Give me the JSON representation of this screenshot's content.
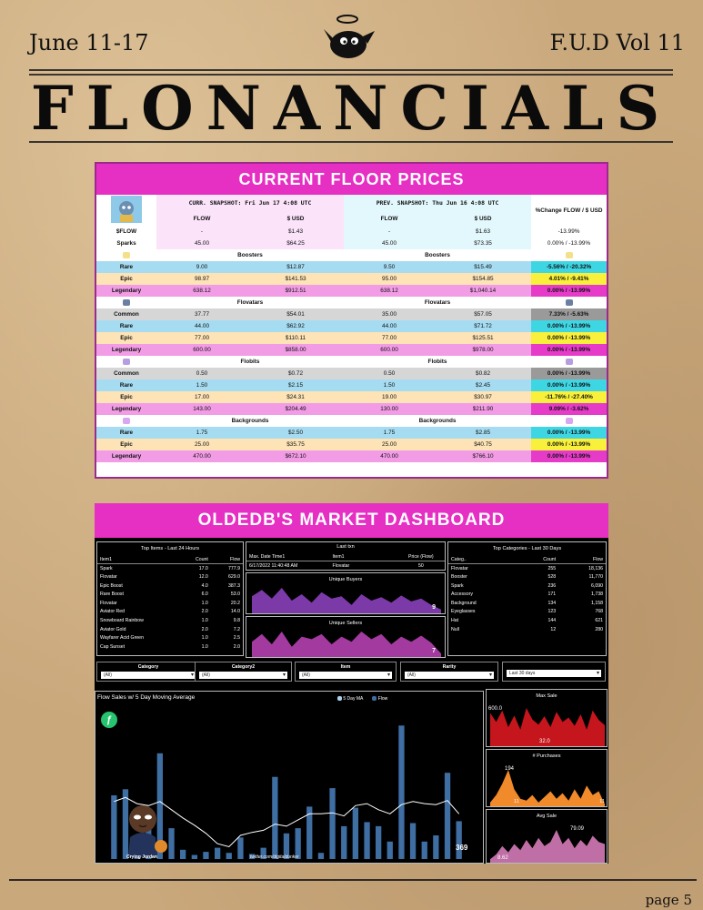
{
  "header": {
    "date_range": "June 11-17",
    "volume": "F.U.D Vol 11",
    "masthead": "FLONANCIALS",
    "page_label": "page 5"
  },
  "floor_prices": {
    "title": "CURRENT FLOOR PRICES",
    "curr_snapshot": "CURR. SNAPSHOT: Fri Jun 17 4:08 UTC",
    "prev_snapshot": "PREV. SNAPSHOT: Thu Jun 16 4:08 UTC",
    "change_header": "%Change FLOW / $ USD",
    "col_flow": "FLOW",
    "col_usd": "$ USD",
    "top_rows": [
      {
        "label": "$FLOW",
        "curr_flow": "-",
        "curr_usd": "$1.43",
        "prev_flow": "-",
        "prev_usd": "$1.63",
        "change": "-13.99%"
      },
      {
        "label": "Sparks",
        "curr_flow": "45.00",
        "curr_usd": "$64.25",
        "prev_flow": "45.00",
        "prev_usd": "$73.35",
        "change": "0.00% / -13.99%"
      }
    ],
    "sections": [
      {
        "name": "Boosters",
        "rows": [
          {
            "label": "Rare",
            "tier": "rare",
            "curr_flow": "9.00",
            "curr_usd": "$12.87",
            "prev_flow": "9.50",
            "prev_usd": "$15.49",
            "change": "-5.56% / -20.32%"
          },
          {
            "label": "Epic",
            "tier": "epic",
            "curr_flow": "98.97",
            "curr_usd": "$141.53",
            "prev_flow": "95.00",
            "prev_usd": "$154.85",
            "change": "4.01% / -9.41%"
          },
          {
            "label": "Legendary",
            "tier": "leg",
            "curr_flow": "638.12",
            "curr_usd": "$912.51",
            "prev_flow": "638.12",
            "prev_usd": "$1,040.14",
            "change": "0.00% / -13.99%"
          }
        ]
      },
      {
        "name": "Flovatars",
        "rows": [
          {
            "label": "Common",
            "tier": "com",
            "curr_flow": "37.77",
            "curr_usd": "$54.01",
            "prev_flow": "35.00",
            "prev_usd": "$57.05",
            "change": "7.33% / -5.63%"
          },
          {
            "label": "Rare",
            "tier": "rare",
            "curr_flow": "44.00",
            "curr_usd": "$62.92",
            "prev_flow": "44.00",
            "prev_usd": "$71.72",
            "change": "0.00% / -13.99%"
          },
          {
            "label": "Epic",
            "tier": "epic",
            "curr_flow": "77.00",
            "curr_usd": "$110.11",
            "prev_flow": "77.00",
            "prev_usd": "$125.51",
            "change": "0.00% / -13.99%"
          },
          {
            "label": "Legendary",
            "tier": "leg",
            "curr_flow": "600.00",
            "curr_usd": "$858.00",
            "prev_flow": "600.00",
            "prev_usd": "$978.00",
            "change": "0.00% / -13.99%"
          }
        ]
      },
      {
        "name": "Flobits",
        "rows": [
          {
            "label": "Common",
            "tier": "com",
            "curr_flow": "0.50",
            "curr_usd": "$0.72",
            "prev_flow": "0.50",
            "prev_usd": "$0.82",
            "change": "0.00% / -13.99%"
          },
          {
            "label": "Rare",
            "tier": "rare",
            "curr_flow": "1.50",
            "curr_usd": "$2.15",
            "prev_flow": "1.50",
            "prev_usd": "$2.45",
            "change": "0.00% / -13.99%"
          },
          {
            "label": "Epic",
            "tier": "epic",
            "curr_flow": "17.00",
            "curr_usd": "$24.31",
            "prev_flow": "19.00",
            "prev_usd": "$30.97",
            "change": "-11.76% / -27.40%"
          },
          {
            "label": "Legendary",
            "tier": "leg",
            "curr_flow": "143.00",
            "curr_usd": "$204.49",
            "prev_flow": "130.00",
            "prev_usd": "$211.90",
            "change": "9.09% / -3.62%"
          }
        ]
      },
      {
        "name": "Backgrounds",
        "rows": [
          {
            "label": "Rare",
            "tier": "rare",
            "curr_flow": "1.75",
            "curr_usd": "$2.50",
            "prev_flow": "1.75",
            "prev_usd": "$2.85",
            "change": "0.00% / -13.99%"
          },
          {
            "label": "Epic",
            "tier": "epic",
            "curr_flow": "25.00",
            "curr_usd": "$35.75",
            "prev_flow": "25.00",
            "prev_usd": "$40.75",
            "change": "0.00% / -13.99%"
          },
          {
            "label": "Legendary",
            "tier": "leg",
            "curr_flow": "470.00",
            "curr_usd": "$672.10",
            "prev_flow": "470.00",
            "prev_usd": "$766.10",
            "change": "0.00% / -13.99%"
          }
        ]
      }
    ]
  },
  "dashboard": {
    "title": "OLDEDB'S MARKET DASHBOARD",
    "top_items": {
      "title": "Top Items - Last 24 Hours",
      "headers": [
        "Item1",
        "Count",
        "Flow"
      ],
      "rows": [
        [
          "Spark",
          "17.0",
          "777.9"
        ],
        [
          "Flovatar",
          "12.0",
          "629.0"
        ],
        [
          "Epic Boost",
          "4.0",
          "387.3"
        ],
        [
          "Rare Boost",
          "6.0",
          "53.0"
        ],
        [
          "Flovatar",
          "1.0",
          "20.2"
        ],
        [
          "Aviator Red",
          "2.0",
          "14.0"
        ],
        [
          "Snowboard Rainbow",
          "1.0",
          "9.8"
        ],
        [
          "Aviator Gold",
          "2.0",
          "7.2"
        ],
        [
          "Wayfarer Acid Green",
          "1.0",
          "2.5"
        ],
        [
          "Cap Sunset",
          "1.0",
          "2.0"
        ]
      ]
    },
    "last_txn": {
      "title": "Last txn",
      "headers": [
        "Max. Date Time1",
        "Item1",
        "Price (Flow)"
      ],
      "row": [
        "6/17/2022 11:40:48 AM",
        "Flovatar",
        "50"
      ]
    },
    "unique_buyers": {
      "title": "Unique Buyers",
      "value": "9"
    },
    "unique_sellers": {
      "title": "Unique Sellers",
      "value": "7"
    },
    "top_categories": {
      "title": "Top Categories - Last 30 Days",
      "headers": [
        "Categ..",
        "Count",
        "Flow"
      ],
      "rows": [
        [
          "Flovatar",
          "255",
          "18,136"
        ],
        [
          "Booster",
          "528",
          "11,770"
        ],
        [
          "Spark",
          "236",
          "6,090"
        ],
        [
          "Accessory",
          "171",
          "1,738"
        ],
        [
          "Background",
          "134",
          "1,158"
        ],
        [
          "Eyeglasses",
          "123",
          "768"
        ],
        [
          "Hat",
          "144",
          "621"
        ],
        [
          "Null",
          "12",
          "280"
        ]
      ]
    },
    "filters": [
      {
        "label": "Category",
        "value": "(All)"
      },
      {
        "label": "Category2",
        "value": "(All)"
      },
      {
        "label": "Item",
        "value": "(All)"
      },
      {
        "label": "Rarity",
        "value": "(All)"
      },
      {
        "label": "",
        "value": "Last 30 days"
      }
    ],
    "flow_chart": {
      "title": "Flow Sales w/ 5 Day Moving Average",
      "legend": [
        "5 Day MA",
        "Flow"
      ],
      "last_value": "369",
      "credit_left": "Crying Jordan",
      "credit_right": "twitter.com/digitaldunker"
    },
    "max_sale": {
      "title": "Max Sale",
      "top_label": "600.0",
      "bottom_label": "32.0"
    },
    "purchases": {
      "title": "# Purchases",
      "peak_label": "194",
      "low_label": "11",
      "end_label": "11"
    },
    "avg_sale": {
      "title": "Avg Sale",
      "peak_label": "79.09",
      "low_label": "8.62"
    }
  },
  "chart_data": [
    {
      "type": "bar",
      "title": "Flow Sales w/ 5 Day Moving Average",
      "series": [
        {
          "name": "Flow",
          "values": [
            620,
            680,
            140,
            430,
            1030,
            300,
            90,
            40,
            70,
            110,
            60,
            210,
            50,
            110,
            800,
            250,
            300,
            510,
            60,
            690,
            320,
            500,
            360,
            320,
            170,
            1300,
            350,
            170,
            230,
            840,
            369
          ]
        },
        {
          "name": "5 Day MA",
          "values": [
            560,
            600,
            540,
            520,
            560,
            480,
            400,
            330,
            250,
            150,
            120,
            230,
            260,
            280,
            340,
            320,
            380,
            440,
            440,
            450,
            420,
            520,
            540,
            480,
            440,
            530,
            560,
            540,
            530,
            570,
            440
          ]
        }
      ],
      "ylim": [
        0,
        1400
      ]
    },
    {
      "type": "area",
      "title": "Max Sale",
      "values": [
        520,
        380,
        560,
        300,
        480,
        260,
        600,
        420,
        340,
        470,
        300,
        540,
        380,
        450,
        320,
        500,
        260,
        560,
        410,
        330
      ]
    },
    {
      "type": "area",
      "title": "# Purchases",
      "values": [
        20,
        60,
        120,
        194,
        90,
        40,
        30,
        60,
        20,
        50,
        80,
        40,
        70,
        30,
        90,
        40,
        110,
        60,
        80,
        11
      ]
    },
    {
      "type": "area",
      "title": "Avg Sale",
      "values": [
        8.62,
        20,
        40,
        25,
        45,
        30,
        55,
        35,
        60,
        40,
        50,
        79.09,
        45,
        60,
        35,
        55,
        40,
        65,
        50,
        45
      ]
    },
    {
      "type": "area",
      "title": "Unique Buyers",
      "values": [
        40,
        55,
        35,
        60,
        30,
        45,
        25,
        50,
        35,
        40,
        20,
        45,
        30,
        38,
        25,
        42,
        28,
        35,
        20,
        9
      ]
    },
    {
      "type": "area",
      "title": "Unique Sellers",
      "values": [
        30,
        45,
        25,
        50,
        20,
        40,
        35,
        45,
        25,
        40,
        30,
        50,
        35,
        45,
        25,
        40,
        30,
        42,
        28,
        7
      ]
    }
  ]
}
